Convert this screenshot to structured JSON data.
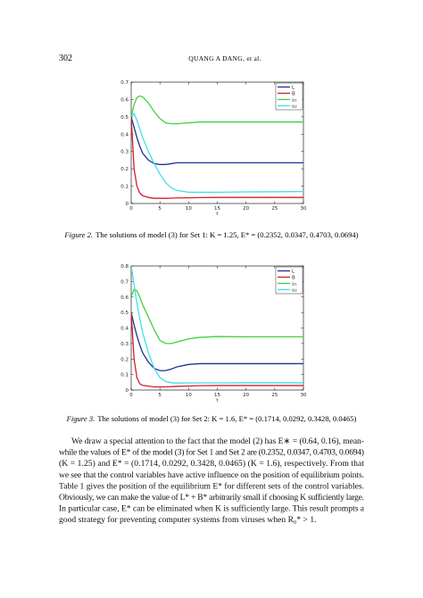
{
  "header": {
    "page_number": "302",
    "running_title": "QUANG A DANG, et al."
  },
  "chart_data": [
    {
      "type": "line",
      "figure_label": "Figure 2.",
      "caption": "The solutions of model (3) for Set 1: K = 1.25, E* = (0.2352, 0.0347, 0.4703, 0.0694)",
      "x_label": "t",
      "x": [
        0,
        0.5,
        1,
        1.5,
        2,
        3,
        4,
        5,
        6,
        7,
        8,
        10,
        12,
        15,
        20,
        25,
        30
      ],
      "xlim": [
        0,
        30
      ],
      "xticks": [
        0,
        5,
        10,
        15,
        20,
        25,
        30
      ],
      "ylim": [
        0,
        0.7
      ],
      "yticks": [
        0,
        0.1,
        0.2,
        0.3,
        0.4,
        0.5,
        0.6,
        0.7
      ],
      "legend": "upper right",
      "series": [
        {
          "name": "L",
          "color": "#1f2f9a",
          "values": [
            0.5,
            0.44,
            0.38,
            0.33,
            0.29,
            0.25,
            0.23,
            0.225,
            0.225,
            0.23,
            0.235,
            0.235,
            0.235,
            0.235,
            0.235,
            0.235,
            0.235
          ]
        },
        {
          "name": "B",
          "color": "#d01f2a",
          "values": [
            0.5,
            0.2,
            0.1,
            0.06,
            0.045,
            0.035,
            0.03,
            0.03,
            0.03,
            0.031,
            0.032,
            0.033,
            0.034,
            0.035,
            0.035,
            0.035,
            0.035
          ]
        },
        {
          "name": "u₁",
          "color": "#3fd23f",
          "values": [
            0.5,
            0.57,
            0.61,
            0.62,
            0.615,
            0.58,
            0.53,
            0.49,
            0.465,
            0.46,
            0.46,
            0.465,
            0.47,
            0.47,
            0.47,
            0.47,
            0.47
          ]
        },
        {
          "name": "u₂",
          "color": "#3fe0e6",
          "values": [
            0.5,
            0.52,
            0.48,
            0.43,
            0.38,
            0.3,
            0.23,
            0.17,
            0.12,
            0.09,
            0.075,
            0.065,
            0.065,
            0.065,
            0.067,
            0.068,
            0.069
          ]
        }
      ]
    },
    {
      "type": "line",
      "figure_label": "Figure 3.",
      "caption": "The solutions of model (3) for Set 2: K = 1.6, E* = (0.1714, 0.0292, 0.3428, 0.0465)",
      "x_label": "t",
      "x": [
        0,
        0.5,
        1,
        1.5,
        2,
        3,
        4,
        5,
        6,
        7,
        8,
        10,
        12,
        15,
        20,
        25,
        30
      ],
      "xlim": [
        0,
        30
      ],
      "xticks": [
        0,
        5,
        10,
        15,
        20,
        25,
        30
      ],
      "ylim": [
        0,
        0.8
      ],
      "yticks": [
        0,
        0.1,
        0.2,
        0.3,
        0.4,
        0.5,
        0.6,
        0.7,
        0.8
      ],
      "legend": "upper right",
      "series": [
        {
          "name": "L",
          "color": "#1f2f9a",
          "values": [
            0.5,
            0.42,
            0.35,
            0.29,
            0.24,
            0.18,
            0.14,
            0.125,
            0.125,
            0.135,
            0.15,
            0.165,
            0.17,
            0.17,
            0.17,
            0.17,
            0.17
          ]
        },
        {
          "name": "B",
          "color": "#d01f2a",
          "values": [
            0.5,
            0.2,
            0.08,
            0.04,
            0.03,
            0.025,
            0.02,
            0.02,
            0.021,
            0.022,
            0.024,
            0.026,
            0.028,
            0.029,
            0.029,
            0.029,
            0.029
          ]
        },
        {
          "name": "u₁",
          "color": "#3fd23f",
          "values": [
            0.6,
            0.65,
            0.64,
            0.6,
            0.55,
            0.47,
            0.39,
            0.32,
            0.3,
            0.3,
            0.31,
            0.33,
            0.34,
            0.345,
            0.343,
            0.343,
            0.343
          ]
        },
        {
          "name": "u₂",
          "color": "#3fe0e6",
          "values": [
            0.8,
            0.68,
            0.56,
            0.46,
            0.37,
            0.24,
            0.14,
            0.08,
            0.055,
            0.047,
            0.045,
            0.046,
            0.046,
            0.046,
            0.0465,
            0.0465,
            0.0465
          ]
        }
      ]
    }
  ],
  "body": {
    "lines": [
      "We draw a special attention to the fact that the model (2) has E∗ = (0.64, 0.16), mean-",
      "while the values of E* of the model (3) for Set 1 and Set 2 are (0.2352, 0.0347, 0.4703, 0.0694)",
      "(K = 1.25) and E* = (0.1714, 0.0292, 0.3428, 0.0465) (K = 1.6), respectively. From that",
      "we see that the control variables have active influence on the position of equilibrium points.",
      "Table 1 gives the position of the equilibrium E* for different sets of the control variables.",
      "Obviously, we can make the value of L* + B* arbitrarily small if choosing K sufficiently large.",
      "In particular case, E* can be eliminated when K is sufficiently large. This result prompts a",
      "good strategy for preventing computer systems from viruses when R₀* > 1."
    ]
  }
}
